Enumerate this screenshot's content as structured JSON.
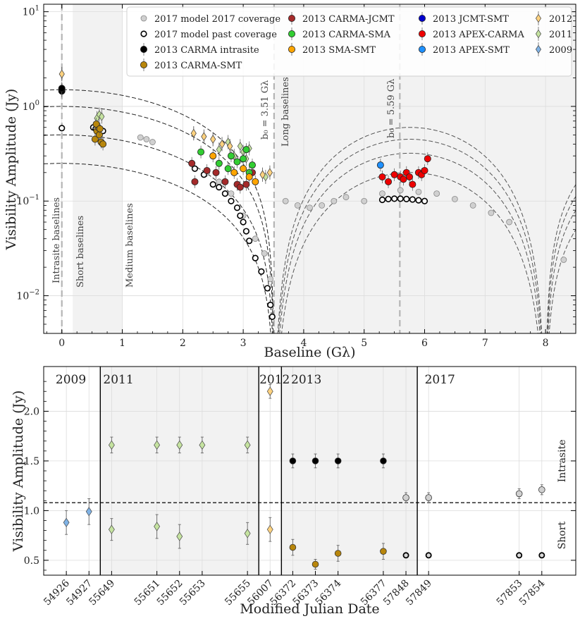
{
  "chart_data": [
    {
      "type": "scatter",
      "panel": "top",
      "xlabel": "Baseline (Gλ)",
      "ylabel": "Visibility Amplitude (Jy)",
      "xlim": [
        -0.3,
        8.5
      ],
      "ylim": [
        0.004,
        12
      ],
      "yscale": "log",
      "grid": true,
      "legend_position": "top-right",
      "x_ticks": [
        "0",
        "1",
        "2",
        "3",
        "4",
        "5",
        "6",
        "7",
        "8"
      ],
      "x_tick_values": [
        0,
        1,
        2,
        3,
        4,
        5,
        6,
        7,
        8
      ],
      "y_ticks": [
        "10^-2",
        "10^-1",
        "10^0",
        "10^1"
      ],
      "y_tick_values": [
        0.01,
        0.1,
        1,
        10
      ],
      "y_tick_base": "10",
      "y_tick_exponents": [
        "−2",
        "−1",
        "0",
        "1"
      ],
      "shaded_regions": [
        [
          0.18,
          1.0
        ],
        [
          3.51,
          8.5
        ]
      ],
      "region_labels": [
        "Intrasite baselines",
        "Short baselines",
        "Medium baselines",
        "Long baselines"
      ],
      "vlines": [
        {
          "x": 0.0,
          "label": ""
        },
        {
          "x": 3.51,
          "label": "b₀ = 3.51 Gλ"
        },
        {
          "x": 5.59,
          "label": "b₀ = 5.59 Gλ"
        }
      ],
      "model_curves": {
        "first_null_amplitudes": [
          1.5,
          1.0,
          0.5,
          0.25
        ],
        "first_null": 3.51,
        "ring_amplitudes": [
          0.6,
          0.45,
          0.32,
          0.2
        ],
        "ring_null": 8.0
      },
      "legend": [
        {
          "label": "2017 model 2017 coverage",
          "color": "#d0d0d0",
          "marker": "circle-open-gray"
        },
        {
          "label": "2017 model past coverage",
          "color": "#ffffff",
          "marker": "circle-open-black"
        },
        {
          "label": "2013 CARMA intrasite",
          "color": "#000000",
          "marker": "circle"
        },
        {
          "label": "2013 CARMA-SMT",
          "color": "#b8860b",
          "marker": "circle"
        },
        {
          "label": "2013 CARMA-JCMT",
          "color": "#a52a2a",
          "marker": "circle"
        },
        {
          "label": "2013 CARMA-SMA",
          "color": "#32cd32",
          "marker": "circle"
        },
        {
          "label": "2013 SMA-SMT",
          "color": "#ffa500",
          "marker": "circle"
        },
        {
          "label": "2013 JCMT-SMT",
          "color": "#0000cd",
          "marker": "circle"
        },
        {
          "label": "2013 APEX-CARMA",
          "color": "#ee0000",
          "marker": "circle"
        },
        {
          "label": "2013 APEX-SMT",
          "color": "#1e90ff",
          "marker": "circle"
        },
        {
          "label": "2012",
          "color": "#ffd27f",
          "marker": "diamond"
        },
        {
          "label": "2011",
          "color": "#c5e3a0",
          "marker": "diamond"
        },
        {
          "label": "2009",
          "color": "#7fb2e5",
          "marker": "diamond"
        }
      ],
      "series": [
        {
          "legend_index": 2,
          "x": [
            0.0,
            0.0,
            0.0
          ],
          "y": [
            1.5,
            1.45,
            1.55
          ]
        },
        {
          "legend_index": 3,
          "x": [
            0.55,
            0.58,
            0.6,
            0.62,
            0.65,
            0.68,
            0.57,
            0.63
          ],
          "y": [
            0.45,
            0.55,
            0.6,
            0.5,
            0.42,
            0.4,
            0.65,
            0.58
          ]
        },
        {
          "legend_index": 4,
          "x": [
            2.15,
            2.2,
            2.55,
            2.7,
            2.9,
            2.95,
            3.05,
            3.15,
            2.4
          ],
          "y": [
            0.25,
            0.16,
            0.2,
            0.16,
            0.15,
            0.14,
            0.15,
            0.2,
            0.21
          ]
        },
        {
          "legend_index": 5,
          "x": [
            2.3,
            2.6,
            2.8,
            2.9,
            3.0,
            3.05,
            3.1,
            3.15,
            2.75
          ],
          "y": [
            0.33,
            0.25,
            0.3,
            0.26,
            0.28,
            0.35,
            0.2,
            0.24,
            0.22
          ]
        },
        {
          "legend_index": 6,
          "x": [
            2.5,
            2.85,
            3.0,
            3.1,
            3.2
          ],
          "y": [
            0.3,
            0.2,
            0.22,
            0.18,
            0.16
          ]
        },
        {
          "legend_index": 8,
          "x": [
            5.3,
            5.4,
            5.5,
            5.6,
            5.7,
            5.75,
            5.8,
            5.9,
            5.95,
            6.0,
            6.05,
            5.65
          ],
          "y": [
            0.18,
            0.16,
            0.19,
            0.18,
            0.2,
            0.18,
            0.15,
            0.2,
            0.19,
            0.21,
            0.28,
            0.17
          ]
        },
        {
          "legend_index": 9,
          "x": [
            5.27
          ],
          "y": [
            0.24
          ]
        },
        {
          "legend_index": 10,
          "x": [
            0.0,
            2.18,
            2.35,
            2.5,
            2.65,
            2.78,
            3.32,
            3.44
          ],
          "y": [
            2.2,
            0.52,
            0.48,
            0.45,
            0.4,
            0.38,
            0.19,
            0.2
          ]
        },
        {
          "legend_index": 11,
          "x": [
            0.58,
            0.62,
            0.66,
            2.6,
            2.75,
            2.85,
            2.95,
            3.0,
            3.05,
            3.1,
            3.37
          ],
          "y": [
            0.75,
            0.82,
            0.78,
            0.35,
            0.42,
            0.3,
            0.38,
            0.33,
            0.28,
            0.36,
            0.18
          ]
        },
        {
          "legend_index": 12,
          "x": [
            0.58,
            0.62,
            0.66,
            0.7,
            2.9,
            2.98,
            3.05,
            3.12
          ],
          "y": [
            0.88,
            0.95,
            0.92,
            0.86,
            0.38,
            0.42,
            0.35,
            0.3
          ]
        },
        {
          "legend_index": 1,
          "x": [
            0.0,
            0.52,
            0.56,
            0.6,
            0.64,
            0.68,
            2.2,
            2.35,
            2.5,
            2.6,
            2.7,
            2.8,
            2.9,
            2.95,
            3.0,
            3.05,
            3.1,
            3.2,
            3.3,
            3.4,
            3.45,
            3.48,
            5.3,
            5.4,
            5.5,
            5.6,
            5.7,
            5.8,
            5.9,
            6.0
          ],
          "y": [
            0.59,
            0.6,
            0.58,
            0.57,
            0.56,
            0.55,
            0.22,
            0.19,
            0.15,
            0.14,
            0.12,
            0.1,
            0.085,
            0.07,
            0.06,
            0.048,
            0.038,
            0.025,
            0.018,
            0.012,
            0.008,
            0.006,
            0.103,
            0.105,
            0.106,
            0.106,
            0.105,
            0.104,
            0.102,
            0.1
          ]
        },
        {
          "legend_index": 0,
          "x": [
            1.3,
            1.4,
            1.5,
            2.4,
            2.6,
            2.8,
            3.0,
            3.2,
            3.35,
            3.45,
            3.7,
            3.9,
            4.1,
            4.3,
            4.5,
            4.7,
            5.0,
            5.3,
            5.6,
            5.9,
            6.2,
            6.5,
            6.8,
            7.1,
            7.4,
            8.3
          ],
          "y": [
            0.47,
            0.45,
            0.42,
            0.2,
            0.16,
            0.12,
            0.07,
            0.04,
            0.028,
            0.015,
            0.1,
            0.09,
            0.085,
            0.09,
            0.1,
            0.11,
            0.1,
            0.12,
            0.13,
            0.125,
            0.12,
            0.105,
            0.09,
            0.075,
            0.06,
            0.024
          ]
        }
      ]
    },
    {
      "type": "scatter",
      "panel": "bottom",
      "xlabel": "Modified Julian Date",
      "ylabel": "Visibility Amplitude (Jy)",
      "ylim": [
        0.35,
        2.45
      ],
      "y_ticks": [
        "0.5",
        "1.0",
        "1.5",
        "2.0"
      ],
      "y_tick_values": [
        0.5,
        1.0,
        1.5,
        2.0
      ],
      "categories": [
        "54926",
        "54927",
        "55649",
        "55651",
        "55652",
        "55653",
        "55655",
        "56007",
        "56372",
        "56373",
        "56374",
        "56377",
        "57848",
        "57849",
        "57853",
        "57854"
      ],
      "category_slots": [
        1,
        2,
        3,
        5,
        6,
        7,
        9,
        10,
        11,
        12,
        13,
        15,
        16,
        17,
        21,
        22
      ],
      "slot_range": [
        0,
        23.5
      ],
      "year_labels": [
        "2009",
        "2011",
        "2012",
        "2013",
        "2017"
      ],
      "year_label_slots": [
        1.2,
        3.3,
        10.2,
        11.6,
        17.5
      ],
      "year_dividers": [
        2.5,
        9.5,
        10.5,
        16.5
      ],
      "shaded_slot_ranges": [
        [
          2.5,
          9.5
        ],
        [
          10.5,
          16.5
        ]
      ],
      "hline": 1.08,
      "side_labels": [
        "Intrasite",
        "Short"
      ],
      "side_label_values": [
        1.5,
        0.75
      ],
      "series": [
        {
          "name": "2009",
          "legend_index": 12,
          "marker": "diamond",
          "color": "#7fb2e5",
          "x": [
            "54926",
            "54927"
          ],
          "y": [
            0.88,
            0.99
          ],
          "err": [
            0.12,
            0.13
          ]
        },
        {
          "name": "2011",
          "legend_index": 11,
          "marker": "diamond",
          "color": "#c5e3a0",
          "x": [
            "55649",
            "55651",
            "55652",
            "55653",
            "55655",
            "55649",
            "55651",
            "55652",
            "55655"
          ],
          "y": [
            1.66,
            1.66,
            1.66,
            1.66,
            1.66,
            0.81,
            0.84,
            0.74,
            0.77
          ],
          "err": [
            0.08,
            0.08,
            0.08,
            0.08,
            0.08,
            0.11,
            0.12,
            0.12,
            0.11
          ]
        },
        {
          "name": "2012",
          "legend_index": 10,
          "marker": "diamond",
          "color": "#ffd27f",
          "x": [
            "56007",
            "56007"
          ],
          "y": [
            2.2,
            0.81
          ],
          "err": [
            0.07,
            0.12
          ]
        },
        {
          "name": "2013 CARMA intrasite",
          "legend_index": 2,
          "marker": "circle",
          "color": "#000000",
          "x": [
            "56372",
            "56373",
            "56374",
            "56377"
          ],
          "y": [
            1.5,
            1.5,
            1.5,
            1.5
          ],
          "err": [
            0.07,
            0.07,
            0.07,
            0.07
          ]
        },
        {
          "name": "2013 CARMA-SMT",
          "legend_index": 3,
          "marker": "circle",
          "color": "#b8860b",
          "x": [
            "56372",
            "56373",
            "56374",
            "56377"
          ],
          "y": [
            0.63,
            0.46,
            0.57,
            0.59
          ],
          "err": [
            0.08,
            0.05,
            0.08,
            0.08
          ]
        },
        {
          "name": "2017 model 2017 coverage",
          "legend_index": 0,
          "marker": "circle",
          "color": "#d0d0d0",
          "x": [
            "57848",
            "57849",
            "57853",
            "57854"
          ],
          "y": [
            1.13,
            1.13,
            1.17,
            1.21
          ],
          "err": [
            0.05,
            0.05,
            0.05,
            0.05
          ]
        },
        {
          "name": "2017 model past coverage",
          "legend_index": 1,
          "marker": "circle-open",
          "color": "#d9d9d9",
          "x": [
            "57848",
            "57849",
            "57853",
            "57854"
          ],
          "y": [
            0.55,
            0.55,
            0.55,
            0.55
          ],
          "err": [
            0,
            0,
            0,
            0
          ]
        }
      ]
    }
  ]
}
